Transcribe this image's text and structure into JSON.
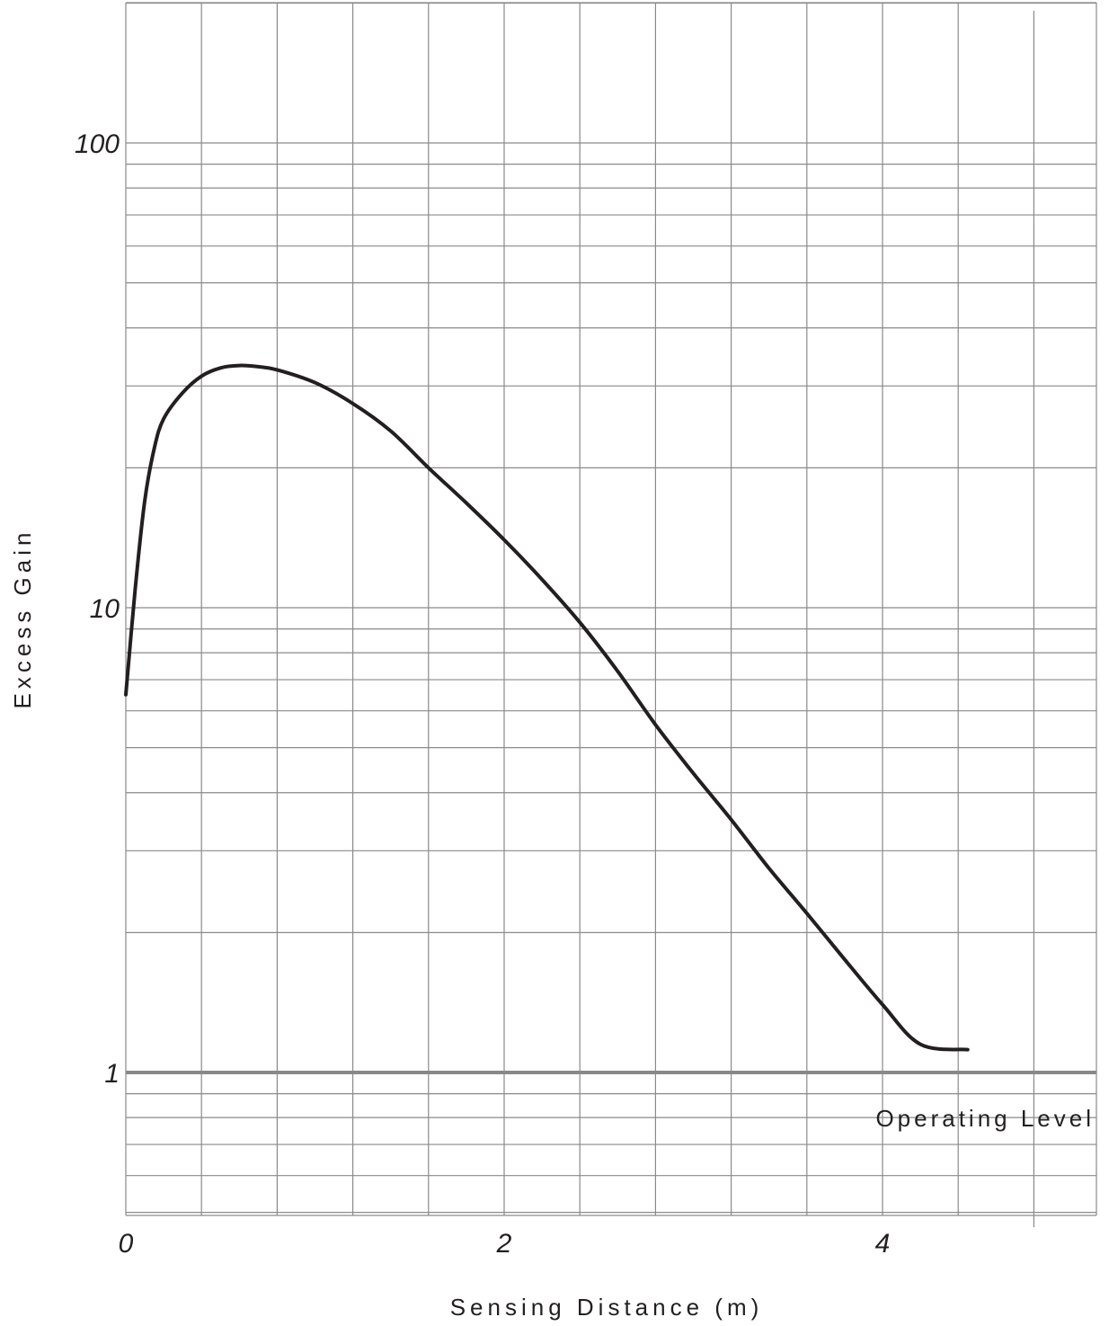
{
  "chart_data": {
    "type": "line",
    "title": "",
    "xlabel": "Sensing Distance (m)",
    "ylabel": "Excess Gain",
    "x_scale": "linear",
    "y_scale": "log",
    "xlim": [
      0,
      5.15
    ],
    "ylim": [
      0.5,
      200
    ],
    "x_ticks": [
      0,
      2,
      4
    ],
    "x_tick_labels": [
      "0",
      "2",
      "4"
    ],
    "y_ticks": [
      1,
      10,
      100
    ],
    "y_tick_labels": [
      "1",
      "10",
      "100"
    ],
    "grid": true,
    "legend": "none",
    "series": [
      {
        "color": "#231f20",
        "points": [
          [
            0.0,
            6.5
          ],
          [
            0.05,
            11.0
          ],
          [
            0.1,
            17.0
          ],
          [
            0.15,
            22.0
          ],
          [
            0.2,
            25.5
          ],
          [
            0.3,
            29.0
          ],
          [
            0.4,
            31.5
          ],
          [
            0.5,
            32.8
          ],
          [
            0.6,
            33.2
          ],
          [
            0.7,
            33.0
          ],
          [
            0.8,
            32.5
          ],
          [
            1.0,
            30.5
          ],
          [
            1.2,
            27.5
          ],
          [
            1.4,
            24.0
          ],
          [
            1.6,
            20.0
          ],
          [
            1.8,
            16.8
          ],
          [
            2.0,
            14.0
          ],
          [
            2.2,
            11.5
          ],
          [
            2.4,
            9.3
          ],
          [
            2.6,
            7.3
          ],
          [
            2.8,
            5.6
          ],
          [
            3.0,
            4.4
          ],
          [
            3.2,
            3.5
          ],
          [
            3.4,
            2.75
          ],
          [
            3.6,
            2.2
          ],
          [
            3.8,
            1.75
          ],
          [
            4.0,
            1.4
          ],
          [
            4.2,
            1.15
          ],
          [
            4.45,
            1.12
          ]
        ]
      }
    ],
    "reference_lines": [
      {
        "y": 1,
        "color": "#888888"
      }
    ],
    "annotations": [
      {
        "text": "Operating Level"
      }
    ]
  }
}
